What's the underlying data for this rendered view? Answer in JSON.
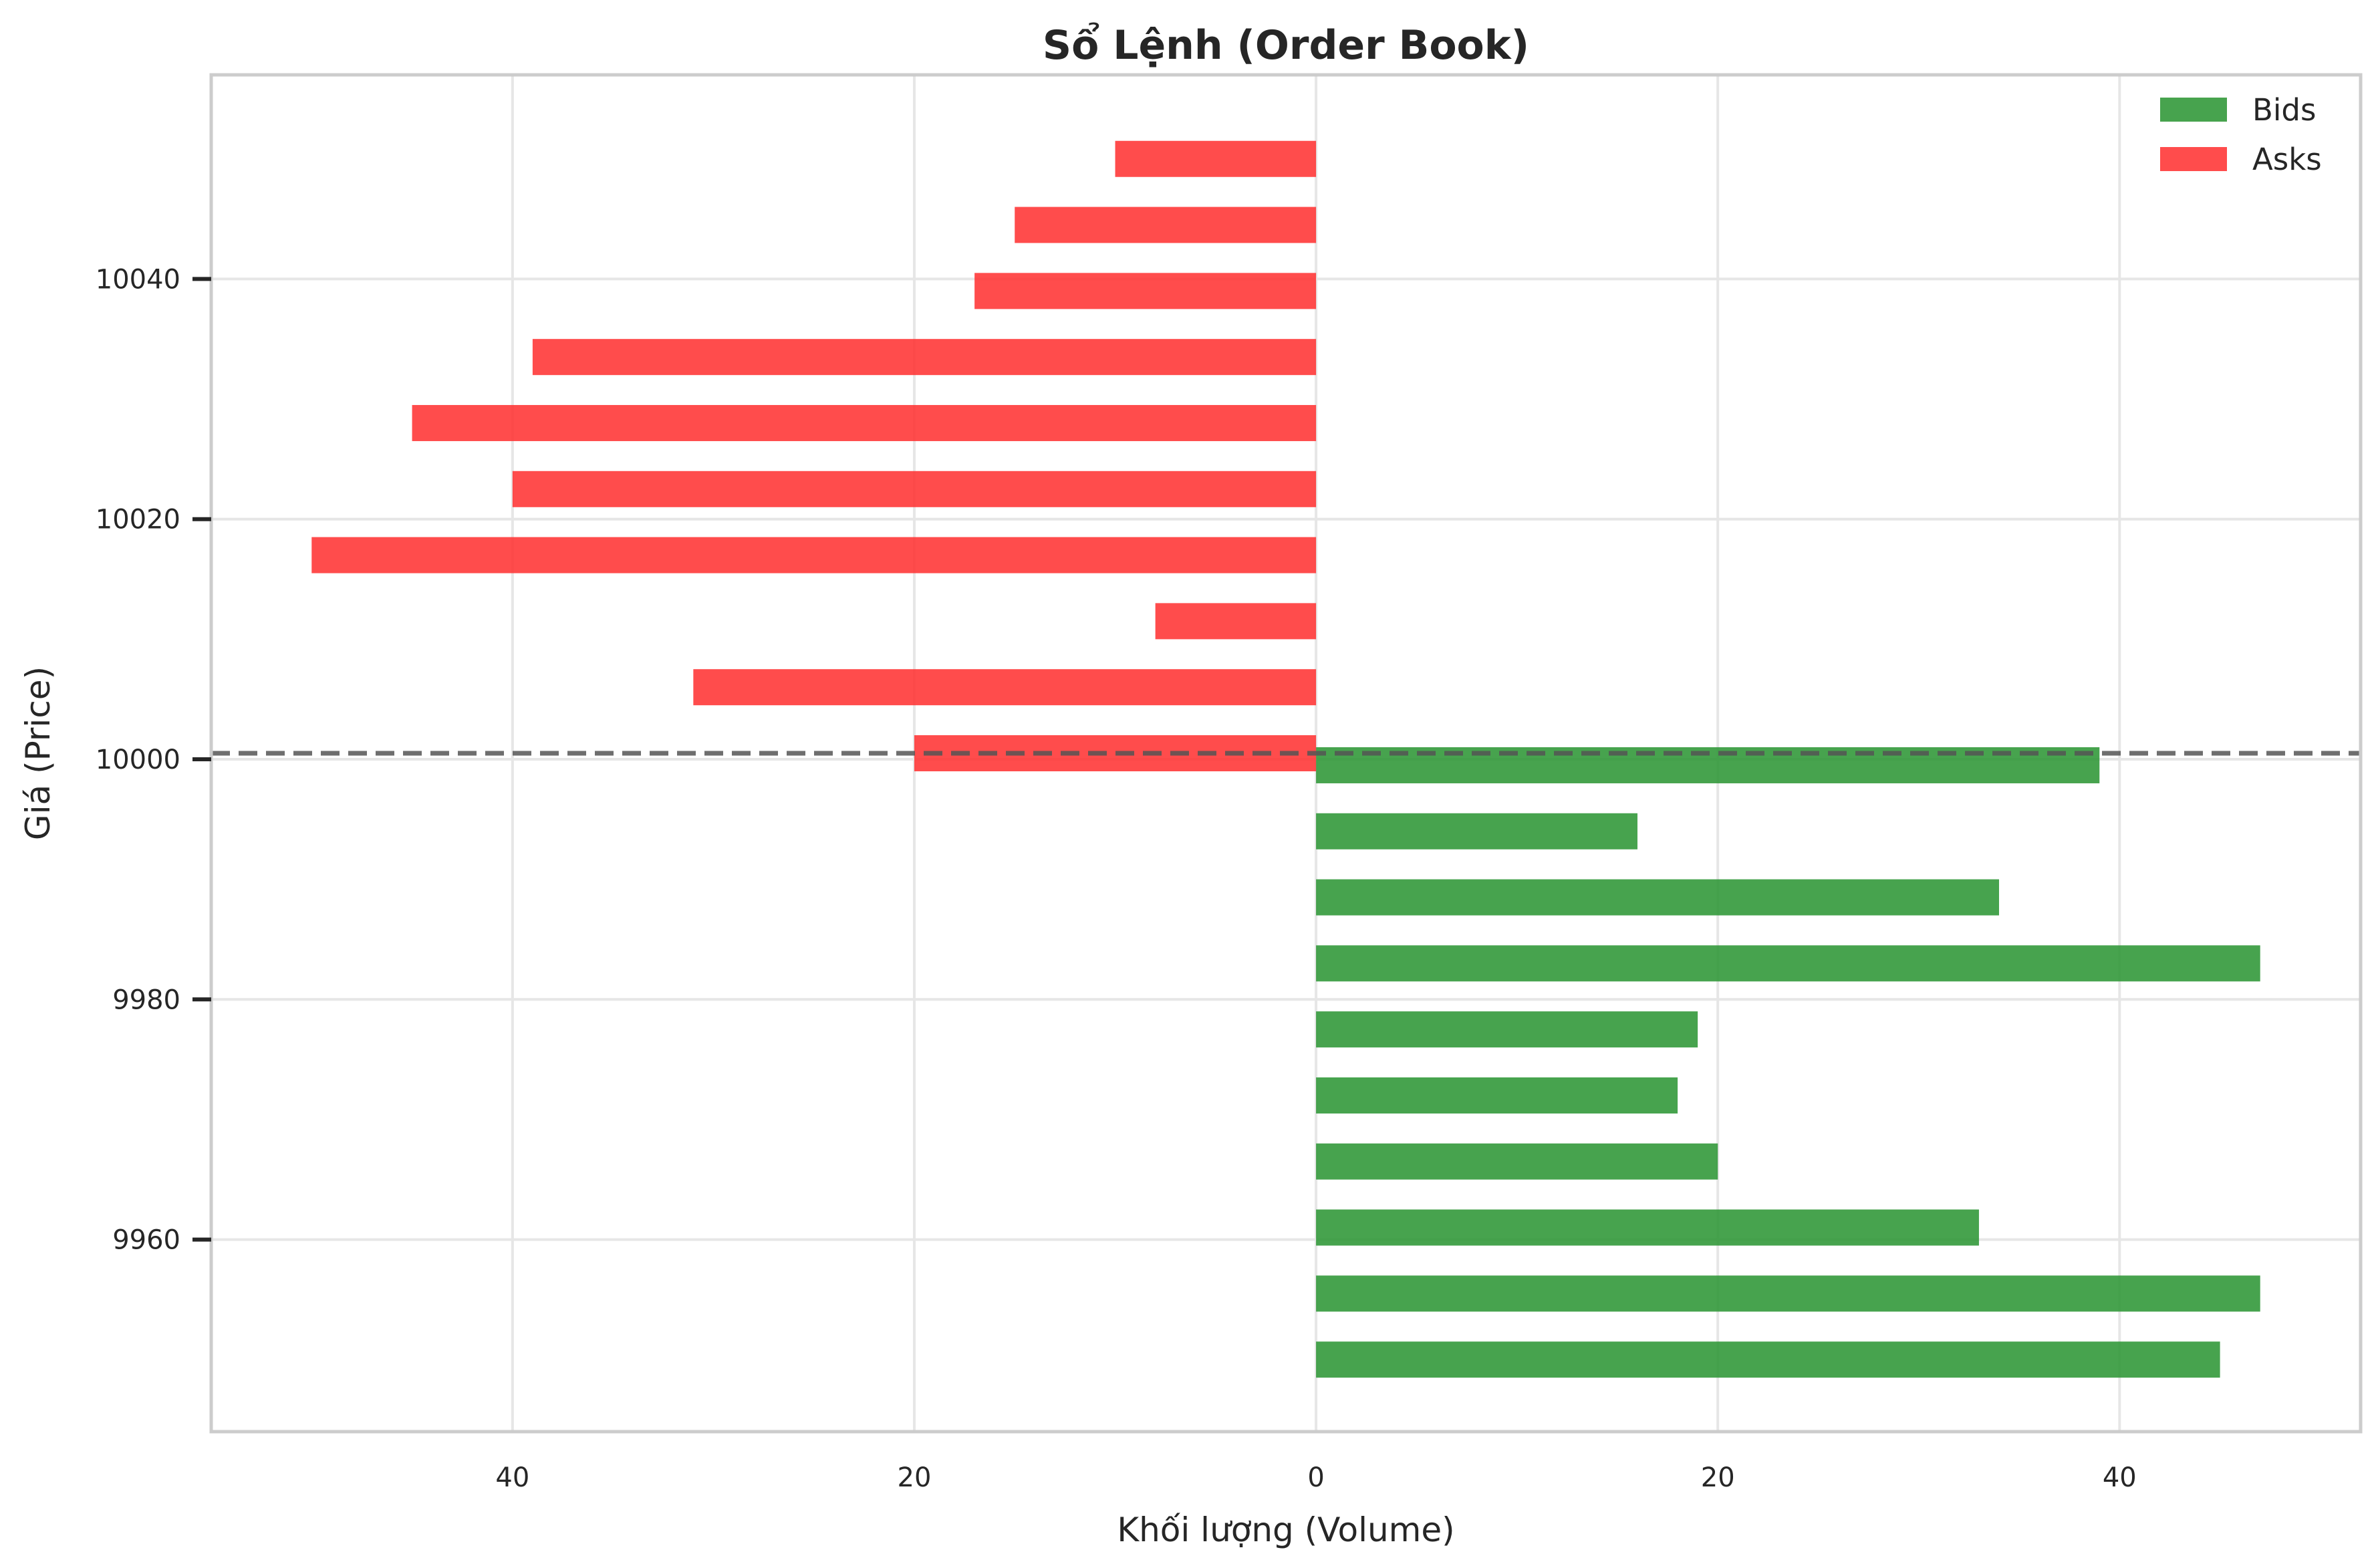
{
  "chart_data": {
    "type": "bar",
    "orientation": "horizontal",
    "title": "Sổ Lệnh (Order Book)",
    "xlabel": "Khối lượng (Volume)",
    "ylabel": "Giá (Price)",
    "xlim": [
      -55,
      52
    ],
    "ylim": [
      9944,
      10057
    ],
    "x_ticks": [
      -40,
      -20,
      0,
      20,
      40
    ],
    "x_tick_labels": [
      "40",
      "20",
      "0",
      "20",
      "40"
    ],
    "y_ticks": [
      9960,
      9980,
      10000,
      10020,
      10040
    ],
    "y_tick_labels": [
      "9960",
      "9980",
      "10000",
      "10020",
      "10040"
    ],
    "grid": true,
    "legend_position": "top-right",
    "reference_line": {
      "y": 10000.5,
      "style": "dashed",
      "color": "#555555"
    },
    "series": [
      {
        "name": "Bids",
        "color": "#2e9636",
        "side": "right",
        "bars": [
          {
            "price": 9950,
            "volume": 45
          },
          {
            "price": 9955.5,
            "volume": 47
          },
          {
            "price": 9961,
            "volume": 33
          },
          {
            "price": 9966.5,
            "volume": 20
          },
          {
            "price": 9972,
            "volume": 18
          },
          {
            "price": 9977.5,
            "volume": 19
          },
          {
            "price": 9983,
            "volume": 47
          },
          {
            "price": 9988.5,
            "volume": 34
          },
          {
            "price": 9994,
            "volume": 16
          },
          {
            "price": 9999.5,
            "volume": 39
          }
        ]
      },
      {
        "name": "Asks",
        "color": "#ff3333",
        "side": "left",
        "bars": [
          {
            "price": 10000.5,
            "volume": 20
          },
          {
            "price": 10006,
            "volume": 31
          },
          {
            "price": 10011.5,
            "volume": 8
          },
          {
            "price": 10017,
            "volume": 50
          },
          {
            "price": 10022.5,
            "volume": 40
          },
          {
            "price": 10028,
            "volume": 45
          },
          {
            "price": 10033.5,
            "volume": 39
          },
          {
            "price": 10039,
            "volume": 17
          },
          {
            "price": 10044.5,
            "volume": 15
          },
          {
            "price": 10050,
            "volume": 10
          }
        ]
      }
    ]
  }
}
